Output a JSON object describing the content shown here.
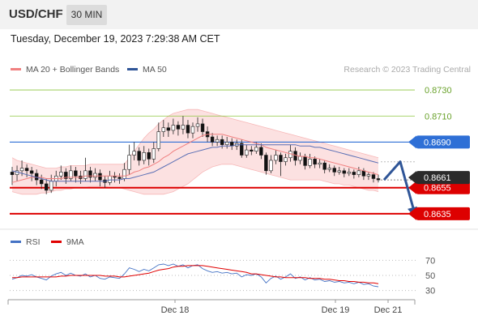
{
  "header": {
    "symbol": "USD/CHF",
    "timeframe": "30 MIN"
  },
  "timestamp": "Tuesday, December 19, 2023 7:29:38 AM CET",
  "legend": {
    "ma20": {
      "label": "MA 20 + Bollinger Bands",
      "color": "#f08080"
    },
    "ma50": {
      "label": "MA 50",
      "color": "#2f5597"
    }
  },
  "credit": "Research © 2023 Trading Central",
  "rsi_legend": {
    "rsi": {
      "label": "RSI",
      "color": "#4472c4"
    },
    "ma9": {
      "label": "9MA",
      "color": "#e00000"
    }
  },
  "colors": {
    "up": "#ffffff",
    "down": "#111111",
    "band_fill": "#fcdcdc",
    "arrow": "#2f5597"
  },
  "chart_data": [
    {
      "type": "candlestick",
      "ylim": [
        0.8625,
        0.874
      ],
      "x_ticks": [
        "Dec 18",
        "Dec 19",
        "Dec 21"
      ],
      "candles": [
        [
          0.8667,
          0.8665,
          0.8671,
          0.8657
        ],
        [
          0.8665,
          0.8668,
          0.8672,
          0.866
        ],
        [
          0.8668,
          0.867,
          0.8676,
          0.8664
        ],
        [
          0.867,
          0.8668,
          0.8673,
          0.8663
        ],
        [
          0.8668,
          0.8666,
          0.8671,
          0.866
        ],
        [
          0.8666,
          0.8661,
          0.8669,
          0.8657
        ],
        [
          0.8661,
          0.8658,
          0.8665,
          0.8654
        ],
        [
          0.8658,
          0.8653,
          0.8662,
          0.865
        ],
        [
          0.8653,
          0.866,
          0.8665,
          0.8651
        ],
        [
          0.866,
          0.8664,
          0.8668,
          0.8656
        ],
        [
          0.8664,
          0.8667,
          0.8672,
          0.8661
        ],
        [
          0.8667,
          0.8662,
          0.867,
          0.8658
        ],
        [
          0.8662,
          0.8668,
          0.8672,
          0.866
        ],
        [
          0.8668,
          0.8664,
          0.8671,
          0.8659
        ],
        [
          0.8664,
          0.8662,
          0.8668,
          0.8658
        ],
        [
          0.8662,
          0.8668,
          0.8678,
          0.866
        ],
        [
          0.8668,
          0.8663,
          0.8671,
          0.8659
        ],
        [
          0.8663,
          0.8666,
          0.867,
          0.866
        ],
        [
          0.8666,
          0.8661,
          0.8669,
          0.8656
        ],
        [
          0.8661,
          0.8659,
          0.8664,
          0.8655
        ],
        [
          0.8659,
          0.8664,
          0.8668,
          0.8657
        ],
        [
          0.8664,
          0.8663,
          0.8667,
          0.8659
        ],
        [
          0.8663,
          0.8662,
          0.8666,
          0.8658
        ],
        [
          0.8662,
          0.8669,
          0.8674,
          0.866
        ],
        [
          0.8669,
          0.868,
          0.8688,
          0.8665
        ],
        [
          0.868,
          0.8683,
          0.869,
          0.8676
        ],
        [
          0.8683,
          0.8676,
          0.8686,
          0.8672
        ],
        [
          0.8676,
          0.8682,
          0.8687,
          0.8673
        ],
        [
          0.8682,
          0.8677,
          0.8685,
          0.8672
        ],
        [
          0.8677,
          0.8685,
          0.869,
          0.8674
        ],
        [
          0.8685,
          0.8698,
          0.8705,
          0.8683
        ],
        [
          0.8698,
          0.8701,
          0.8707,
          0.8694
        ],
        [
          0.8701,
          0.8699,
          0.8705,
          0.8694
        ],
        [
          0.8699,
          0.8703,
          0.8708,
          0.8696
        ],
        [
          0.8703,
          0.87,
          0.8706,
          0.8695
        ],
        [
          0.87,
          0.8703,
          0.871,
          0.8696
        ],
        [
          0.8703,
          0.8697,
          0.8707,
          0.8693
        ],
        [
          0.8697,
          0.8702,
          0.8705,
          0.8693
        ],
        [
          0.8702,
          0.8704,
          0.8709,
          0.8698
        ],
        [
          0.8704,
          0.8698,
          0.8708,
          0.8694
        ],
        [
          0.8698,
          0.8694,
          0.8702,
          0.869
        ],
        [
          0.8694,
          0.869,
          0.8697,
          0.8687
        ],
        [
          0.869,
          0.8692,
          0.8695,
          0.8687
        ],
        [
          0.8692,
          0.8688,
          0.8695,
          0.8685
        ],
        [
          0.8688,
          0.869,
          0.8694,
          0.8685
        ],
        [
          0.869,
          0.8687,
          0.8693,
          0.8684
        ],
        [
          0.8687,
          0.8689,
          0.8692,
          0.8684
        ],
        [
          0.8689,
          0.868,
          0.8692,
          0.8678
        ],
        [
          0.868,
          0.8684,
          0.8688,
          0.8678
        ],
        [
          0.8684,
          0.8683,
          0.8687,
          0.868
        ],
        [
          0.8683,
          0.8686,
          0.869,
          0.8681
        ],
        [
          0.8686,
          0.868,
          0.8689,
          0.8677
        ],
        [
          0.868,
          0.8668,
          0.8682,
          0.8665
        ],
        [
          0.8668,
          0.8676,
          0.868,
          0.8666
        ],
        [
          0.8676,
          0.868,
          0.8684,
          0.8673
        ],
        [
          0.868,
          0.8675,
          0.8682,
          0.8664
        ],
        [
          0.8675,
          0.8678,
          0.8681,
          0.8672
        ],
        [
          0.8678,
          0.8683,
          0.8688,
          0.8675
        ],
        [
          0.8683,
          0.8676,
          0.8686,
          0.8672
        ],
        [
          0.8676,
          0.8679,
          0.8682,
          0.8673
        ],
        [
          0.8679,
          0.8672,
          0.8681,
          0.8669
        ],
        [
          0.8672,
          0.8677,
          0.8681,
          0.867
        ],
        [
          0.8677,
          0.8673,
          0.8679,
          0.867
        ],
        [
          0.8673,
          0.8674,
          0.8677,
          0.867
        ],
        [
          0.8674,
          0.8669,
          0.8676,
          0.8666
        ],
        [
          0.8669,
          0.867,
          0.8673,
          0.8667
        ],
        [
          0.867,
          0.8667,
          0.8672,
          0.8664
        ],
        [
          0.8667,
          0.8668,
          0.8671,
          0.8665
        ],
        [
          0.8668,
          0.8666,
          0.867,
          0.8663
        ],
        [
          0.8666,
          0.8667,
          0.867,
          0.8664
        ],
        [
          0.8667,
          0.8665,
          0.8669,
          0.8662
        ],
        [
          0.8665,
          0.8668,
          0.8671,
          0.8663
        ],
        [
          0.8668,
          0.8664,
          0.867,
          0.8661
        ],
        [
          0.8664,
          0.8665,
          0.8667,
          0.8661
        ],
        [
          0.8665,
          0.8662,
          0.8667,
          0.8659
        ],
        [
          0.8662,
          0.8661,
          0.8665,
          0.8659
        ]
      ],
      "ma20": [
        0.8659,
        0.866,
        0.8661,
        0.8662,
        0.8663,
        0.8663,
        0.8663,
        0.8662,
        0.8662,
        0.8662,
        0.8662,
        0.8663,
        0.8663,
        0.8663,
        0.8663,
        0.8664,
        0.8664,
        0.8664,
        0.8664,
        0.8664,
        0.8664,
        0.8664,
        0.8664,
        0.8664,
        0.8665,
        0.8667,
        0.8668,
        0.867,
        0.8671,
        0.8673,
        0.8675,
        0.8678,
        0.868,
        0.8683,
        0.8685,
        0.8687,
        0.8689,
        0.8691,
        0.8693,
        0.8695,
        0.8696,
        0.8696,
        0.8696,
        0.8696,
        0.8695,
        0.8694,
        0.8693,
        0.8692,
        0.8691,
        0.869,
        0.8689,
        0.8688,
        0.8686,
        0.8685,
        0.8684,
        0.8683,
        0.8682,
        0.8681,
        0.868,
        0.8679,
        0.8679,
        0.8678,
        0.8678,
        0.8677,
        0.8676,
        0.8675,
        0.8674,
        0.8673,
        0.8672,
        0.8671,
        0.867,
        0.8669,
        0.8668,
        0.8667,
        0.8666,
        0.8665
      ],
      "bb_upper": [
        0.8678,
        0.8676,
        0.8675,
        0.8674,
        0.8673,
        0.8672,
        0.8671,
        0.867,
        0.867,
        0.867,
        0.8671,
        0.8671,
        0.8672,
        0.8672,
        0.8672,
        0.8672,
        0.8673,
        0.8673,
        0.8673,
        0.8673,
        0.8673,
        0.8673,
        0.8673,
        0.8673,
        0.8678,
        0.8683,
        0.8688,
        0.8693,
        0.8697,
        0.87,
        0.8704,
        0.8707,
        0.871,
        0.8712,
        0.8713,
        0.8714,
        0.8715,
        0.8715,
        0.8715,
        0.8714,
        0.8713,
        0.8712,
        0.8711,
        0.871,
        0.8709,
        0.8708,
        0.8707,
        0.8706,
        0.8705,
        0.8704,
        0.8703,
        0.8702,
        0.8701,
        0.87,
        0.8699,
        0.8698,
        0.8697,
        0.8696,
        0.8695,
        0.8694,
        0.8693,
        0.8692,
        0.8691,
        0.869,
        0.8689,
        0.8688,
        0.8687,
        0.8686,
        0.8685,
        0.8684,
        0.8683,
        0.8682,
        0.8681,
        0.868,
        0.8679,
        0.8678
      ],
      "bb_lower": [
        0.8652,
        0.8651,
        0.865,
        0.865,
        0.865,
        0.865,
        0.8651,
        0.8651,
        0.8652,
        0.8653,
        0.8653,
        0.8654,
        0.8654,
        0.8655,
        0.8655,
        0.8655,
        0.8656,
        0.8656,
        0.8656,
        0.8656,
        0.8655,
        0.8655,
        0.8655,
        0.8654,
        0.8653,
        0.8652,
        0.8651,
        0.865,
        0.865,
        0.865,
        0.865,
        0.865,
        0.8651,
        0.8652,
        0.8654,
        0.8656,
        0.8658,
        0.8661,
        0.8664,
        0.8667,
        0.8669,
        0.8671,
        0.8672,
        0.8673,
        0.8673,
        0.8673,
        0.8672,
        0.8671,
        0.867,
        0.8669,
        0.8668,
        0.8667,
        0.8666,
        0.8665,
        0.8664,
        0.8663,
        0.8662,
        0.8661,
        0.8661,
        0.8661,
        0.8661,
        0.8661,
        0.8661,
        0.8661,
        0.866,
        0.8659,
        0.8658,
        0.8658,
        0.8657,
        0.8657,
        0.8656,
        0.8655,
        0.8654,
        0.8653,
        0.8653,
        0.8652
      ],
      "ma50": [
        0.8668,
        0.8667,
        0.8666,
        0.8665,
        0.8664,
        0.8663,
        0.8662,
        0.8661,
        0.866,
        0.866,
        0.866,
        0.866,
        0.866,
        0.866,
        0.866,
        0.866,
        0.866,
        0.866,
        0.866,
        0.866,
        0.8661,
        0.8661,
        0.8661,
        0.8662,
        0.8662,
        0.8663,
        0.8664,
        0.8665,
        0.8666,
        0.8667,
        0.8669,
        0.8671,
        0.8673,
        0.8675,
        0.8677,
        0.8679,
        0.8681,
        0.8682,
        0.8683,
        0.8684,
        0.8685,
        0.8686,
        0.8686,
        0.8687,
        0.8687,
        0.8687,
        0.8688,
        0.8688,
        0.8688,
        0.8688,
        0.8688,
        0.8688,
        0.8688,
        0.8688,
        0.8688,
        0.8688,
        0.8688,
        0.8688,
        0.8688,
        0.8687,
        0.8687,
        0.8687,
        0.8686,
        0.8686,
        0.8685,
        0.8684,
        0.8683,
        0.8682,
        0.8681,
        0.868,
        0.8679,
        0.8678,
        0.8677,
        0.8676,
        0.8675,
        0.8674
      ],
      "levels": [
        {
          "value": 0.873,
          "label": "0.8730",
          "color": "#8dc63f",
          "style": "resistance"
        },
        {
          "value": 0.871,
          "label": "0.8710",
          "color": "#8dc63f",
          "style": "resistance"
        },
        {
          "value": 0.869,
          "label": "0.8690",
          "color": "#2e6fd6",
          "style": "pivot"
        },
        {
          "value": 0.8655,
          "label": "0.8655",
          "color": "#dd0000",
          "style": "support"
        },
        {
          "value": 0.8635,
          "label": "0.8635",
          "color": "#dd0000",
          "style": "support"
        }
      ],
      "last_price": {
        "value": 0.8661,
        "label": "0.8661"
      },
      "scenario_path": [
        0.8661,
        0.8675,
        0.8635
      ]
    },
    {
      "type": "line",
      "title": "RSI",
      "ylim": [
        20,
        80
      ],
      "y_ticks": [
        70,
        50,
        30
      ],
      "series": [
        {
          "name": "RSI",
          "color": "#4472c4",
          "values": [
            45,
            47,
            50,
            49,
            51,
            48,
            46,
            44,
            49,
            52,
            54,
            50,
            53,
            50,
            49,
            52,
            48,
            50,
            46,
            45,
            48,
            47,
            46,
            52,
            60,
            58,
            55,
            58,
            56,
            60,
            64,
            65,
            63,
            65,
            62,
            64,
            60,
            63,
            64,
            59,
            56,
            54,
            55,
            53,
            54,
            52,
            53,
            48,
            51,
            50,
            52,
            48,
            40,
            46,
            49,
            45,
            48,
            52,
            46,
            48,
            44,
            47,
            44,
            45,
            42,
            43,
            41,
            42,
            40,
            41,
            39,
            41,
            38,
            39,
            36,
            35
          ]
        },
        {
          "name": "9MA",
          "color": "#e00000",
          "values": [
            47,
            47,
            48,
            48,
            48,
            48,
            48,
            48,
            48,
            48,
            49,
            49,
            50,
            50,
            50,
            50,
            50,
            50,
            50,
            49,
            49,
            49,
            48,
            48,
            49,
            50,
            51,
            52,
            53,
            55,
            57,
            58,
            59,
            61,
            62,
            62,
            63,
            63,
            63,
            63,
            62,
            61,
            60,
            59,
            58,
            57,
            56,
            55,
            54,
            52,
            52,
            51,
            50,
            49,
            48,
            48,
            47,
            47,
            47,
            47,
            47,
            46,
            46,
            46,
            45,
            45,
            44,
            43,
            43,
            42,
            42,
            41,
            41,
            40,
            40,
            39
          ]
        }
      ]
    }
  ]
}
